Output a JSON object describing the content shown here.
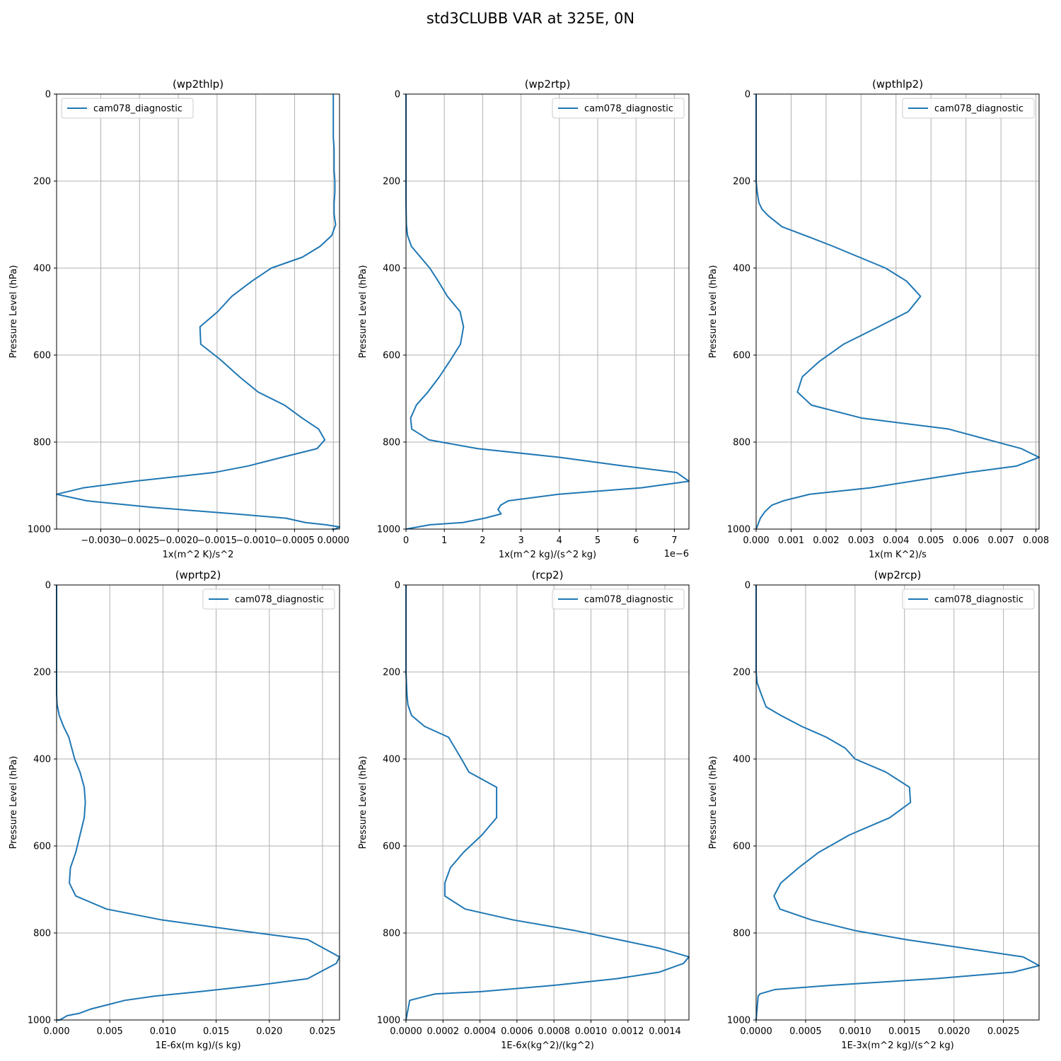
{
  "figure": {
    "title": "std3CLUBB VAR at 325E, 0N"
  },
  "colors": {
    "series": "#1f77b4",
    "grid": "#b0b0b0"
  },
  "chart_data": [
    {
      "type": "line",
      "title": "(wp2thlp)",
      "xlabel": "1x(m^2 K)/s^2",
      "ylabel": "Pressure Level (hPa)",
      "x_offset_text": "",
      "xlim": [
        -0.00357,
        8e-05
      ],
      "ylim": [
        1000,
        0
      ],
      "x_ticks": [
        -0.003,
        -0.0025,
        -0.002,
        -0.0015,
        -0.001,
        -0.0005,
        0.0
      ],
      "x_tick_labels": [
        "−0.0030",
        "−0.0025",
        "−0.0020",
        "−0.0015",
        "−0.0010",
        "−0.0005",
        "0.0000"
      ],
      "y_ticks": [
        0,
        200,
        400,
        600,
        800,
        1000
      ],
      "grid": true,
      "legend_position": "upper-left",
      "series": [
        {
          "name": "cam078_diagnostic",
          "x": [
            0.0,
            0.0,
            0.0,
            1e-05,
            1e-05,
            1e-05,
            2e-05,
            2e-05,
            1e-05,
            1e-05,
            2e-05,
            3e-05,
            -2e-05,
            -0.00017,
            -0.0004,
            -0.0008,
            -0.00105,
            -0.00131,
            -0.00149,
            -0.00172,
            -0.00171,
            -0.00146,
            -0.00121,
            -0.00097,
            -0.00063,
            -0.0004,
            -0.00019,
            -0.00011,
            -0.00021,
            -0.00066,
            -0.0011,
            -0.00154,
            -0.00257,
            -0.00322,
            -0.00357,
            -0.00318,
            -0.00234,
            -0.00127,
            -0.00061,
            -0.00036,
            -0.0001,
            8e-05,
            2e-05,
            -2e-05
          ],
          "y": [
            0,
            50,
            100,
            125,
            150,
            175,
            200,
            225,
            250,
            275,
            290,
            300,
            325,
            350,
            375,
            400,
            430,
            465,
            500,
            535,
            575,
            610,
            650,
            685,
            715,
            745,
            770,
            795,
            815,
            835,
            855,
            870,
            890,
            905,
            920,
            935,
            950,
            965,
            975,
            985,
            990,
            995,
            1000,
            1000
          ]
        }
      ]
    },
    {
      "type": "line",
      "title": "(wp2rtp)",
      "xlabel": "1x(m^2 kg)/(s^2 kg)",
      "ylabel": "Pressure Level (hPa)",
      "x_offset_text": "1e−6",
      "xlim": [
        0,
        7.38
      ],
      "ylim": [
        1000,
        0
      ],
      "x_ticks": [
        0,
        1,
        2,
        3,
        4,
        5,
        6,
        7
      ],
      "x_tick_labels": [
        "0",
        "1",
        "2",
        "3",
        "4",
        "5",
        "6",
        "7"
      ],
      "y_ticks": [
        0,
        200,
        400,
        600,
        800,
        1000
      ],
      "grid": true,
      "legend_position": "upper-right",
      "series": [
        {
          "name": "cam078_diagnostic",
          "x": [
            0.0,
            0.0,
            0.0,
            0.0,
            0.01,
            0.04,
            0.14,
            0.38,
            0.62,
            0.84,
            1.08,
            1.41,
            1.5,
            1.42,
            1.17,
            0.87,
            0.57,
            0.27,
            0.12,
            0.15,
            0.6,
            1.87,
            4.0,
            5.69,
            7.06,
            7.38,
            6.14,
            3.98,
            2.67,
            2.47,
            2.4,
            2.48,
            2.05,
            1.48,
            0.63,
            0.0
          ],
          "y": [
            0,
            100,
            200,
            250,
            300,
            325,
            350,
            375,
            400,
            430,
            465,
            500,
            535,
            575,
            610,
            650,
            685,
            715,
            745,
            770,
            795,
            815,
            835,
            855,
            870,
            890,
            905,
            920,
            935,
            945,
            955,
            965,
            975,
            985,
            990,
            1000
          ]
        }
      ]
    },
    {
      "type": "line",
      "title": "(wpthlp2)",
      "xlabel": "1x(m K^2)/s",
      "ylabel": "Pressure Level (hPa)",
      "x_offset_text": "",
      "xlim": [
        0,
        0.00809
      ],
      "ylim": [
        1000,
        0
      ],
      "x_ticks": [
        0.0,
        0.001,
        0.002,
        0.003,
        0.004,
        0.005,
        0.006,
        0.007,
        0.008
      ],
      "x_tick_labels": [
        "0.000",
        "0.001",
        "0.002",
        "0.003",
        "0.004",
        "0.005",
        "0.006",
        "0.007",
        "0.008"
      ],
      "y_ticks": [
        0,
        200,
        400,
        600,
        800,
        1000
      ],
      "grid": true,
      "legend_position": "upper-right",
      "series": [
        {
          "name": "cam078_diagnostic",
          "x": [
            0.0,
            0.0,
            0.0,
            3e-05,
            8e-05,
            0.00017,
            0.00035,
            0.00074,
            0.0014,
            0.0022,
            0.00295,
            0.0037,
            0.0043,
            0.0047,
            0.00435,
            0.0035,
            0.0025,
            0.0018,
            0.00132,
            0.00118,
            0.00158,
            0.00303,
            0.0055,
            0.00758,
            0.00809,
            0.00745,
            0.00605,
            0.00327,
            0.00153,
            0.00078,
            0.00045,
            0.00025,
            0.00012,
            5e-05,
            0.0
          ],
          "y": [
            0,
            100,
            200,
            225,
            250,
            265,
            280,
            305,
            325,
            350,
            375,
            400,
            430,
            465,
            500,
            535,
            575,
            615,
            650,
            685,
            715,
            745,
            770,
            815,
            835,
            855,
            870,
            905,
            920,
            935,
            945,
            960,
            975,
            990,
            1000
          ]
        }
      ]
    },
    {
      "type": "line",
      "title": "(wprtp2)",
      "xlabel": "1E-6x(m kg)/(s kg)",
      "ylabel": "Pressure Level (hPa)",
      "x_offset_text": "",
      "xlim": [
        0,
        0.0266
      ],
      "ylim": [
        1000,
        0
      ],
      "x_ticks": [
        0.0,
        0.005,
        0.01,
        0.015,
        0.02,
        0.025
      ],
      "x_tick_labels": [
        "0.000",
        "0.005",
        "0.010",
        "0.015",
        "0.020",
        "0.025"
      ],
      "y_ticks": [
        0,
        200,
        400,
        600,
        800,
        1000
      ],
      "grid": true,
      "legend_position": "upper-right",
      "series": [
        {
          "name": "cam078_diagnostic",
          "x": [
            0.0,
            0.0,
            0.0,
            0.0,
            5e-05,
            0.00025,
            0.00065,
            0.00115,
            0.0017,
            0.0022,
            0.0026,
            0.0027,
            0.0026,
            0.0022,
            0.0018,
            0.0013,
            0.0012,
            0.0018,
            0.0047,
            0.0099,
            0.0173,
            0.0236,
            0.0266,
            0.0263,
            0.0236,
            0.019,
            0.0134,
            0.0093,
            0.0064,
            0.0048,
            0.0032,
            0.0021,
            0.001,
            0.0003,
            0.0
          ],
          "y": [
            0,
            100,
            200,
            250,
            275,
            300,
            325,
            350,
            400,
            430,
            465,
            500,
            535,
            575,
            615,
            650,
            685,
            715,
            745,
            770,
            795,
            815,
            855,
            870,
            905,
            920,
            935,
            945,
            955,
            965,
            975,
            985,
            990,
            1000,
            1000
          ]
        }
      ]
    },
    {
      "type": "line",
      "title": "(rcp2)",
      "xlabel": "1E-6x(kg^2)/(kg^2)",
      "ylabel": "Pressure Level (hPa)",
      "x_offset_text": "",
      "xlim": [
        0,
        0.00153
      ],
      "ylim": [
        1000,
        0
      ],
      "x_ticks": [
        0.0,
        0.0002,
        0.0004,
        0.0006,
        0.0008,
        0.001,
        0.0012,
        0.0014
      ],
      "x_tick_labels": [
        "0.0000",
        "0.0002",
        "0.0004",
        "0.0006",
        "0.0008",
        "0.0010",
        "0.0012",
        "0.0014"
      ],
      "y_ticks": [
        0,
        200,
        400,
        600,
        800,
        1000
      ],
      "grid": true,
      "legend_position": "upper-right",
      "series": [
        {
          "name": "cam078_diagnostic",
          "x": [
            0.0,
            0.0,
            0.0,
            5e-06,
            1e-05,
            3e-05,
            0.0001,
            0.00023,
            0.0003,
            0.00034,
            0.00049,
            0.00049,
            0.00041,
            0.00031,
            0.00024,
            0.00021,
            0.00021,
            0.00032,
            0.00058,
            0.00092,
            0.00137,
            0.00153,
            0.0015,
            0.00137,
            0.00114,
            0.00081,
            0.0004,
            0.00016,
            0.00011,
            2e-05,
            0.0
          ],
          "y": [
            0,
            100,
            200,
            250,
            275,
            300,
            325,
            350,
            400,
            430,
            465,
            535,
            575,
            615,
            650,
            685,
            715,
            745,
            770,
            795,
            835,
            855,
            870,
            890,
            905,
            920,
            935,
            940,
            945,
            955,
            1000
          ]
        }
      ]
    },
    {
      "type": "line",
      "title": "(wp2rcp)",
      "xlabel": "1E-3x(m^2 kg)/(s^2 kg)",
      "ylabel": "Pressure Level (hPa)",
      "x_offset_text": "",
      "xlim": [
        0,
        0.00286
      ],
      "ylim": [
        1000,
        0
      ],
      "x_ticks": [
        0.0,
        0.0005,
        0.001,
        0.0015,
        0.002,
        0.0025
      ],
      "x_tick_labels": [
        "0.0000",
        "0.0005",
        "0.0010",
        "0.0015",
        "0.0020",
        "0.0025"
      ],
      "y_ticks": [
        0,
        200,
        400,
        600,
        800,
        1000
      ],
      "grid": true,
      "legend_position": "upper-right",
      "series": [
        {
          "name": "cam078_diagnostic",
          "x": [
            0.0,
            0.0,
            1e-05,
            5e-05,
            0.0001,
            0.00025,
            0.00046,
            0.00071,
            0.0009,
            0.001,
            0.00131,
            0.00155,
            0.00156,
            0.00135,
            0.00094,
            0.00063,
            0.00043,
            0.00025,
            0.00018,
            0.00024,
            0.00056,
            0.00101,
            0.00151,
            0.0027,
            0.00286,
            0.0026,
            0.00181,
            0.00078,
            0.00019,
            4e-05,
            2e-05,
            0.0
          ],
          "y": [
            0,
            200,
            225,
            250,
            280,
            300,
            325,
            350,
            375,
            400,
            430,
            465,
            500,
            535,
            575,
            615,
            650,
            685,
            715,
            745,
            770,
            795,
            815,
            855,
            875,
            890,
            905,
            920,
            930,
            940,
            945,
            1000
          ]
        }
      ]
    }
  ]
}
